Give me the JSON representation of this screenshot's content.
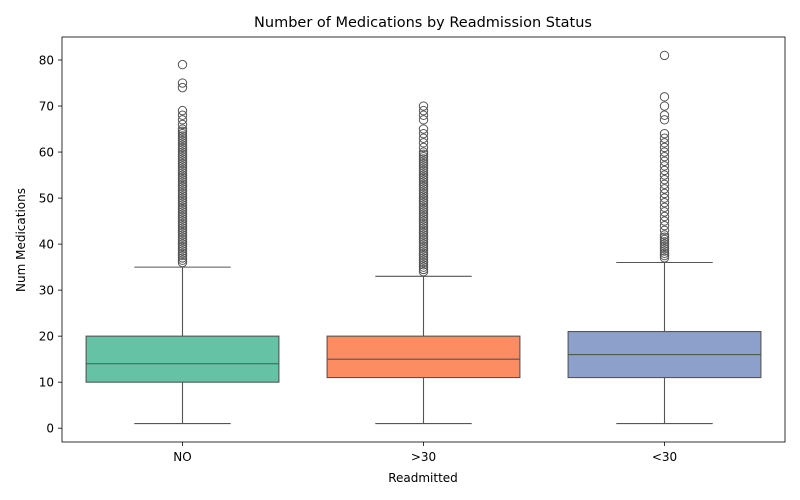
{
  "chart_data": {
    "type": "box",
    "title": "Number of Medications by Readmission Status",
    "xlabel": "Readmitted",
    "ylabel": "Num Medications",
    "ylim": [
      -3,
      85
    ],
    "yticks": [
      0,
      10,
      20,
      30,
      40,
      50,
      60,
      70,
      80
    ],
    "grid": false,
    "categories": [
      "NO",
      ">30",
      "<30"
    ],
    "series": [
      {
        "category": "NO",
        "color": "#66c2a5",
        "whisker_low": 1,
        "q1": 10,
        "median": 14,
        "q3": 20,
        "whisker_high": 35,
        "outliers": [
          36,
          36.5,
          37,
          37.5,
          38,
          38.5,
          39,
          39.5,
          40,
          40.5,
          41,
          41.5,
          42,
          42.5,
          43,
          43.5,
          44,
          44.5,
          45,
          45.5,
          46,
          46.5,
          47,
          47.5,
          48,
          48.5,
          49,
          49.5,
          50,
          50.5,
          51,
          51.5,
          52,
          52.5,
          53,
          53.5,
          54,
          54.5,
          55,
          55.5,
          56,
          56.5,
          57,
          57.5,
          58,
          58.5,
          59,
          59.5,
          60,
          60.5,
          61,
          61.5,
          62,
          62.5,
          63,
          63.5,
          64,
          64.5,
          65,
          66,
          67,
          68,
          69,
          74,
          75,
          79
        ]
      },
      {
        "category": ">30",
        "color": "#fc8d62",
        "whisker_low": 1,
        "q1": 11,
        "median": 15,
        "q3": 20,
        "whisker_high": 33,
        "outliers": [
          34,
          34.5,
          35,
          35.5,
          36,
          36.5,
          37,
          37.5,
          38,
          38.5,
          39,
          39.5,
          40,
          40.5,
          41,
          41.5,
          42,
          42.5,
          43,
          43.5,
          44,
          44.5,
          45,
          45.5,
          46,
          46.5,
          47,
          47.5,
          48,
          48.5,
          49,
          49.5,
          50,
          50.5,
          51,
          51.5,
          52,
          52.5,
          53,
          53.5,
          54,
          54.5,
          55,
          55.5,
          56,
          56.5,
          57,
          57.5,
          58,
          58.5,
          59,
          59.5,
          60,
          61,
          62,
          63,
          64,
          65,
          67,
          68,
          69,
          70
        ]
      },
      {
        "category": "<30",
        "color": "#8da0cb",
        "whisker_low": 1,
        "q1": 11,
        "median": 16,
        "q3": 21,
        "whisker_high": 36,
        "outliers": [
          37,
          37.5,
          38,
          38.5,
          39,
          39.5,
          40,
          40.5,
          41,
          41.5,
          42,
          43,
          44,
          45,
          46,
          47,
          48,
          49,
          50,
          51,
          52,
          53,
          54,
          55,
          56,
          57,
          58,
          59,
          60,
          61,
          62,
          63,
          64,
          67,
          68,
          70,
          72,
          81
        ]
      }
    ]
  }
}
